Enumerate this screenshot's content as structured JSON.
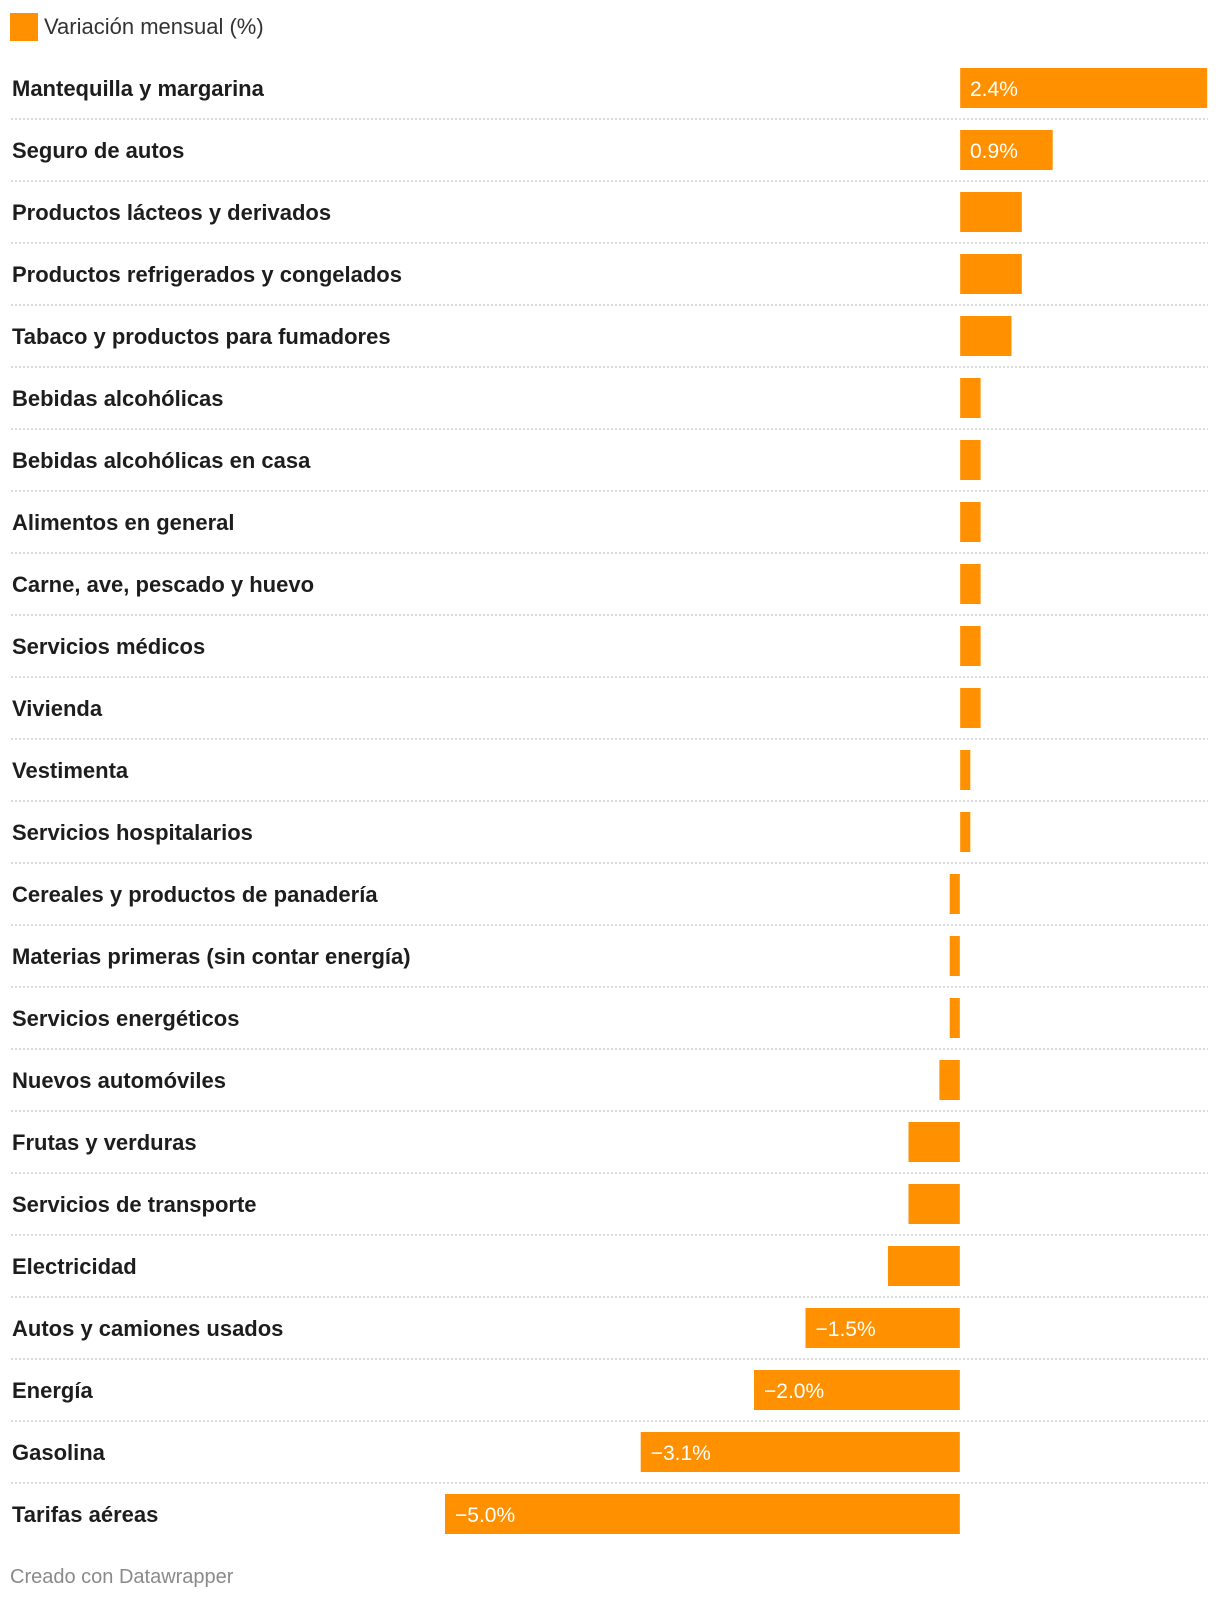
{
  "legend": {
    "label": "Variación mensual (%)",
    "color": "#ff9000"
  },
  "footer": {
    "credit": "Creado con Datawrapper"
  },
  "chart_data": {
    "type": "bar",
    "orientation": "horizontal",
    "series": [
      {
        "name": "Variación mensual (%)",
        "color": "#ff9000"
      }
    ],
    "categories": [
      "Mantequilla y margarina",
      "Seguro de autos",
      "Productos lácteos y derivados",
      "Productos refrigerados y congelados",
      "Tabaco y productos para fumadores",
      "Bebidas alcohólicas",
      "Bebidas alcohólicas en casa",
      "Alimentos en general",
      "Carne, ave, pescado y huevo",
      "Servicios médicos",
      "Vivienda",
      "Vestimenta",
      "Servicios hospitalarios",
      "Cereales y productos de panadería",
      "Materias primeras (sin contar energía)",
      "Servicios energéticos",
      "Nuevos automóviles",
      "Frutas y verduras",
      "Servicios de transporte",
      "Electricidad",
      "Autos y camiones usados",
      "Energía",
      "Gasolina",
      "Tarifas aéreas"
    ],
    "values": [
      2.4,
      0.9,
      0.6,
      0.6,
      0.5,
      0.2,
      0.2,
      0.2,
      0.2,
      0.2,
      0.2,
      0.1,
      0.1,
      -0.1,
      -0.1,
      -0.1,
      -0.2,
      -0.5,
      -0.5,
      -0.7,
      -1.5,
      -2.0,
      -3.1,
      -5.0
    ],
    "value_labels": [
      "2.4%",
      "0.9%",
      "",
      "",
      "",
      "",
      "",
      "",
      "",
      "",
      "",
      "",
      "",
      "",
      "",
      "",
      "",
      "",
      "",
      "",
      "−1.5%",
      "−2.0%",
      "−3.1%",
      "−5.0%"
    ],
    "xlim": [
      -5.0,
      2.4
    ],
    "grid": false
  }
}
